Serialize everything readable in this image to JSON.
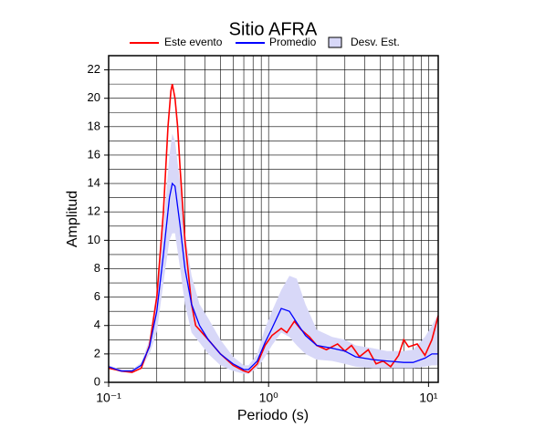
{
  "chart_data": {
    "type": "line",
    "title": "Sitio AFRA",
    "x_label": "Periodo (s)",
    "y_label": "Amplitud",
    "x_log": true,
    "grid": true,
    "xlim": [
      0.1,
      11.5
    ],
    "ylim": [
      0,
      23
    ],
    "xticks": [
      {
        "value": 0.1,
        "label": "10⁻¹"
      },
      {
        "value": 1,
        "label": "10⁰"
      },
      {
        "value": 10,
        "label": "10¹"
      }
    ],
    "minor_xticks": [
      0.2,
      0.3,
      0.4,
      0.5,
      0.6,
      0.7,
      0.8,
      0.9,
      2,
      3,
      4,
      5,
      6,
      7,
      8,
      9
    ],
    "yticks": [
      0,
      2,
      4,
      6,
      8,
      10,
      12,
      14,
      16,
      18,
      20,
      22
    ],
    "minor_yticks": [
      1,
      3,
      5,
      7,
      9,
      11,
      13,
      15,
      17,
      19,
      21,
      23
    ],
    "series": [
      {
        "name": "Este evento",
        "color": "#ff0000",
        "x": [
          0.1,
          0.12,
          0.14,
          0.16,
          0.18,
          0.2,
          0.22,
          0.235,
          0.245,
          0.25,
          0.26,
          0.27,
          0.28,
          0.3,
          0.33,
          0.35,
          0.37,
          0.42,
          0.5,
          0.6,
          0.7,
          0.75,
          0.85,
          0.95,
          1.05,
          1.2,
          1.3,
          1.45,
          1.6,
          1.8,
          2.0,
          2.3,
          2.7,
          3.0,
          3.3,
          3.7,
          4.2,
          4.7,
          5.2,
          5.8,
          6.5,
          7,
          7.5,
          8.5,
          9.5,
          10.5,
          11.5
        ],
        "values": [
          1.0,
          0.8,
          0.7,
          1.0,
          2.6,
          6,
          12,
          18,
          20.5,
          21,
          20,
          18,
          15,
          10,
          5.5,
          4,
          3.7,
          3,
          2,
          1.2,
          0.8,
          0.7,
          1.3,
          2.6,
          3.3,
          3.8,
          3.5,
          4.3,
          3.7,
          3.2,
          2.6,
          2.3,
          2.7,
          2.2,
          2.6,
          1.8,
          2.3,
          1.3,
          1.5,
          1.1,
          1.9,
          3.0,
          2.5,
          2.7,
          1.9,
          3.0,
          4.7
        ]
      },
      {
        "name": "Promedio",
        "color": "#0000ff",
        "x": [
          0.1,
          0.12,
          0.14,
          0.16,
          0.18,
          0.2,
          0.22,
          0.24,
          0.25,
          0.26,
          0.28,
          0.3,
          0.33,
          0.37,
          0.42,
          0.5,
          0.6,
          0.7,
          0.75,
          0.85,
          0.95,
          1.05,
          1.2,
          1.35,
          1.5,
          1.7,
          2,
          2.5,
          3,
          3.5,
          4.5,
          5.5,
          7,
          8,
          9.5,
          10.5,
          11.5
        ],
        "values": [
          1.1,
          0.8,
          0.8,
          1.2,
          2.5,
          5,
          9,
          13,
          14,
          13.8,
          11,
          8,
          5.5,
          4,
          3,
          2,
          1.3,
          0.9,
          0.9,
          1.5,
          2.8,
          3.8,
          5.2,
          5,
          4.2,
          3.3,
          2.6,
          2.4,
          2.2,
          1.8,
          1.6,
          1.5,
          1.4,
          1.4,
          1.7,
          2,
          2
        ]
      },
      {
        "name": "Desv. Est.",
        "color": "#d8d8f8",
        "type": "band",
        "x": [
          0.1,
          0.12,
          0.14,
          0.16,
          0.18,
          0.2,
          0.22,
          0.24,
          0.25,
          0.26,
          0.28,
          0.3,
          0.33,
          0.37,
          0.42,
          0.5,
          0.6,
          0.7,
          0.75,
          0.85,
          0.95,
          1.05,
          1.2,
          1.35,
          1.5,
          1.7,
          2,
          2.5,
          3,
          3.5,
          4.5,
          5.5,
          7,
          8,
          9.5,
          10.5,
          11.5
        ],
        "upper": [
          1.2,
          0.9,
          0.9,
          1.4,
          3,
          6.5,
          11,
          16,
          17.5,
          17,
          14,
          10.5,
          7.5,
          5.5,
          4.5,
          3,
          1.8,
          1.2,
          1.2,
          2,
          3.8,
          5,
          6.5,
          7.5,
          7.3,
          5.5,
          3.7,
          3.2,
          3,
          2.6,
          2.4,
          2.2,
          2.2,
          2.3,
          3.2,
          4,
          4.8
        ],
        "lower": [
          1,
          0.7,
          0.7,
          1,
          2,
          3.5,
          7,
          10,
          10.5,
          10.5,
          8,
          5.5,
          3.5,
          2.8,
          2,
          1.2,
          0.8,
          0.6,
          0.6,
          1,
          1.8,
          2.6,
          3.5,
          3.2,
          2.6,
          2,
          1.6,
          1.5,
          1.3,
          1.1,
          1,
          1,
          1,
          1,
          1.1,
          1.2,
          1.2
        ]
      }
    ]
  }
}
